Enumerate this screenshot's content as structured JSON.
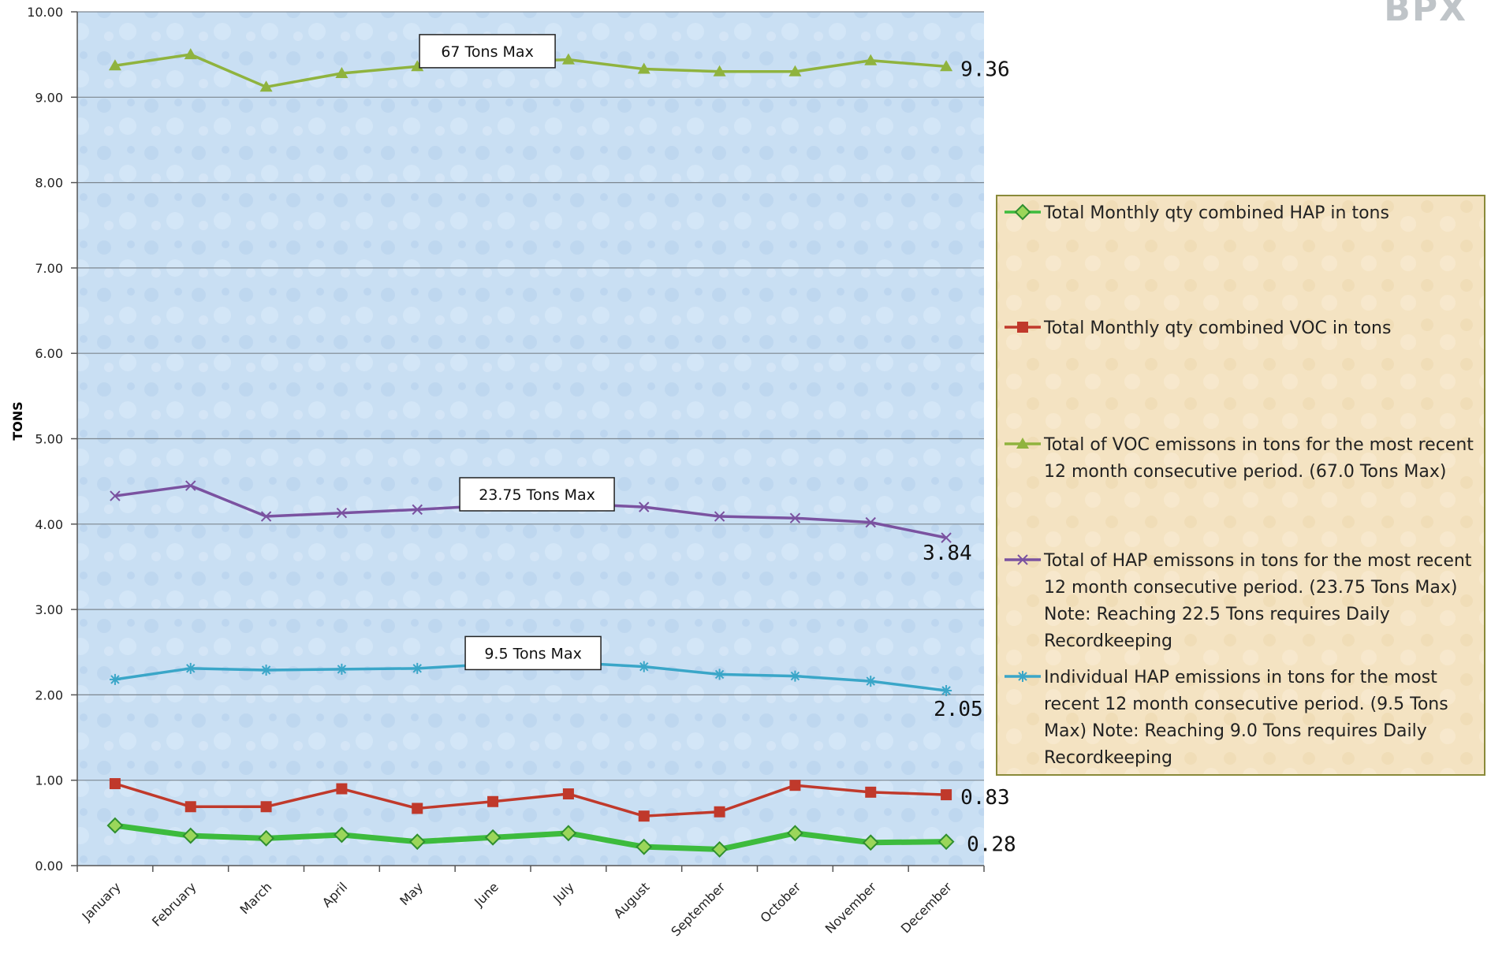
{
  "chart_data": {
    "type": "line",
    "title": "",
    "ylabel": "TONS",
    "xlabel": "",
    "ylim": [
      0,
      10
    ],
    "yticks": [
      "0.00",
      "1.00",
      "2.00",
      "3.00",
      "4.00",
      "5.00",
      "6.00",
      "7.00",
      "8.00",
      "9.00",
      "10.00"
    ],
    "grid": true,
    "legend_position": "right",
    "categories": [
      "January",
      "February",
      "March",
      "April",
      "May",
      "June",
      "July",
      "August",
      "September",
      "October",
      "November",
      "December"
    ],
    "series": [
      {
        "name": "Total Monthly qty combined HAP in tons",
        "color": "#3dbb3d",
        "marker": "diamond",
        "values": [
          0.47,
          0.35,
          0.32,
          0.36,
          0.28,
          0.33,
          0.38,
          0.22,
          0.19,
          0.38,
          0.27,
          0.28
        ],
        "end_label": "0.28"
      },
      {
        "name": "Total Monthly qty combined VOC in tons",
        "color": "#c0392b",
        "marker": "square",
        "values": [
          0.96,
          0.69,
          0.69,
          0.9,
          0.67,
          0.75,
          0.84,
          0.58,
          0.63,
          0.94,
          0.86,
          0.83
        ],
        "end_label": "0.83"
      },
      {
        "name": "Total of VOC emissons in tons for the most recent 12 month consecutive period. (67.0 Tons Max)",
        "color": "#8fb33e",
        "marker": "triangle",
        "values": [
          9.37,
          9.5,
          9.12,
          9.28,
          9.36,
          9.41,
          9.44,
          9.33,
          9.3,
          9.3,
          9.43,
          9.36
        ],
        "end_label": "9.36"
      },
      {
        "name": "Total of HAP emissons in tons for the most recent 12 month consecutive period. (23.75 Tons Max) Note: Reaching 22.5 Tons requires Daily Recordkeeping",
        "color": "#7a52a0",
        "marker": "x",
        "values": [
          4.33,
          4.45,
          4.09,
          4.13,
          4.17,
          4.22,
          4.24,
          4.2,
          4.09,
          4.07,
          4.02,
          3.84
        ],
        "end_label": "3.84"
      },
      {
        "name": "Individual HAP emissions in tons for the most recent 12 month consecutive period. (9.5 Tons Max) Note: Reaching 9.0 Tons requires Daily Recordkeeping",
        "color": "#3aa6c8",
        "marker": "star",
        "values": [
          2.18,
          2.31,
          2.29,
          2.3,
          2.31,
          2.36,
          2.38,
          2.33,
          2.24,
          2.22,
          2.16,
          2.05
        ],
        "end_label": "2.05"
      }
    ],
    "annotations": [
      {
        "text": "67 Tons Max",
        "series": 2
      },
      {
        "text": "23.75 Tons Max",
        "series": 3
      },
      {
        "text": "9.5 Tons Max",
        "series": 4
      }
    ],
    "legend": {
      "entries": [
        [
          "Total Monthly qty combined HAP in tons"
        ],
        [
          "Total Monthly qty combined VOC in tons"
        ],
        [
          "Total of VOC emissons in tons for the most recent",
          "12 month consecutive period. (67.0 Tons Max)"
        ],
        [
          "Total of HAP emissons in tons for the most recent",
          "12 month consecutive period. (23.75 Tons Max)",
          "Note: Reaching 22.5 Tons requires Daily",
          "Recordkeeping"
        ],
        [
          "Individual HAP emissions in tons for the most",
          "recent 12 month consecutive period. (9.5 Tons",
          "Max) Note: Reaching 9.0 Tons requires Daily",
          "Recordkeeping"
        ]
      ]
    }
  },
  "logo": {
    "fragment": "BPX"
  }
}
